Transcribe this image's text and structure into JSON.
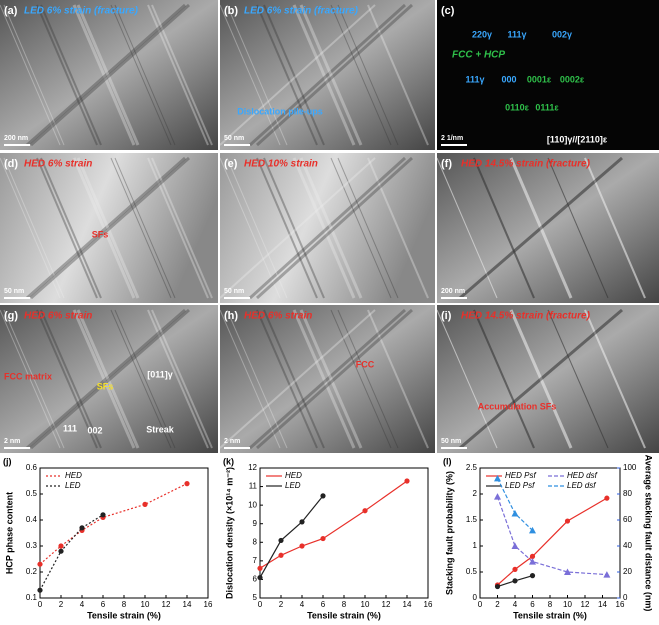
{
  "panels": [
    {
      "label": "(a)",
      "title": "LED 6% strain (fracture)",
      "notes": [],
      "scale": "200 nm"
    },
    {
      "label": "(b)",
      "title": "LED 6% strain (fracture)",
      "notes": [
        "Dislocation pile-ups"
      ],
      "scale": "50 nm"
    },
    {
      "label": "(c)",
      "title": "FCC + HCP",
      "notes": [
        "220γ",
        "111γ",
        "002γ",
        "111γ",
        "000",
        "0001ε",
        "0002ε",
        "0110ε",
        "0111ε",
        "[110]γ//[2110]ε"
      ],
      "scale": "2 1/nm"
    },
    {
      "label": "(d)",
      "title": "HED 6% strain",
      "notes": [
        "SFs"
      ],
      "scale": "50 nm"
    },
    {
      "label": "(e)",
      "title": "HED 10% strain",
      "notes": [],
      "scale": "50 nm"
    },
    {
      "label": "(f)",
      "title": "HED 14.5% strain (fracture)",
      "notes": [],
      "scale": "200 nm"
    },
    {
      "label": "(g)",
      "title": "HED 6% strain",
      "notes": [
        "FCC matrix",
        "SFs",
        "[011]γ",
        "Streak",
        "111",
        "002"
      ],
      "scale": "2 nm"
    },
    {
      "label": "(h)",
      "title": "HED 6% strain",
      "notes": [
        "FCC"
      ],
      "scale": "2 nm"
    },
    {
      "label": "(i)",
      "title": "HED 14.5% strain (fracture)",
      "notes": [
        "Accumulation SFs"
      ],
      "scale": "50 nm"
    }
  ],
  "chart_data": [
    {
      "type": "line",
      "label": "(j)",
      "xlabel": "Tensile strain (%)",
      "ylabel": "HCP phase content",
      "xlim": [
        0,
        16
      ],
      "xticks": [
        0,
        2,
        4,
        6,
        8,
        10,
        12,
        14,
        16
      ],
      "ylim": [
        0.1,
        0.6
      ],
      "yticks": [
        0.1,
        0.2,
        0.3,
        0.4,
        0.5,
        0.6
      ],
      "legend": "top-left",
      "series": [
        {
          "name": "HED",
          "color": "#e8302a",
          "style": "dotted",
          "x": [
            0,
            2,
            4,
            6,
            10,
            14
          ],
          "values": [
            0.23,
            0.3,
            0.36,
            0.41,
            0.46,
            0.54
          ]
        },
        {
          "name": "LED",
          "color": "#222222",
          "style": "dotted",
          "x": [
            0,
            2,
            4,
            6
          ],
          "values": [
            0.13,
            0.28,
            0.37,
            0.42
          ]
        }
      ]
    },
    {
      "type": "line",
      "label": "(k)",
      "xlabel": "Tensile strain (%)",
      "ylabel": "Dislocation density (×10¹⁴ m⁻²)",
      "xlim": [
        0,
        16
      ],
      "xticks": [
        0,
        2,
        4,
        6,
        8,
        10,
        12,
        14,
        16
      ],
      "ylim": [
        5,
        12
      ],
      "yticks": [
        5,
        6,
        7,
        8,
        9,
        10,
        11,
        12
      ],
      "legend": "top-left",
      "series": [
        {
          "name": "HED",
          "color": "#e8302a",
          "style": "solid",
          "x": [
            0,
            2,
            4,
            6,
            10,
            14
          ],
          "values": [
            6.6,
            7.3,
            7.8,
            8.2,
            9.7,
            11.3
          ]
        },
        {
          "name": "LED",
          "color": "#222222",
          "style": "solid",
          "x": [
            0,
            2,
            4,
            6
          ],
          "values": [
            6.1,
            8.1,
            9.1,
            10.5
          ]
        }
      ]
    },
    {
      "type": "line",
      "label": "(l)",
      "xlabel": "Tensile strain (%)",
      "ylabel": "Stacking fault probability (%)",
      "y2label": "Average stacking fault distance (nm)",
      "xlim": [
        0,
        16
      ],
      "xticks": [
        0,
        2,
        4,
        6,
        8,
        10,
        12,
        14,
        16
      ],
      "ylim": [
        0,
        2.5
      ],
      "yticks": [
        0,
        0.5,
        1,
        1.5,
        2,
        2.5
      ],
      "y2lim": [
        0,
        100
      ],
      "y2ticks": [
        0,
        20,
        40,
        60,
        80,
        100
      ],
      "legend": "top-left",
      "series": [
        {
          "name": "HED Psf",
          "color": "#e8302a",
          "style": "solid",
          "x": [
            2,
            4,
            6,
            10,
            14.5
          ],
          "values": [
            0.25,
            0.55,
            0.8,
            1.48,
            1.92
          ]
        },
        {
          "name": "LED Psf",
          "color": "#222222",
          "style": "solid",
          "x": [
            2,
            4,
            6
          ],
          "values": [
            0.22,
            0.33,
            0.43
          ]
        },
        {
          "name": "HED dsf",
          "color": "#7a6fd8",
          "style": "dashed",
          "axis": "y2",
          "x": [
            2,
            4,
            6,
            10,
            14.5
          ],
          "values": [
            78,
            40,
            28,
            20,
            18
          ]
        },
        {
          "name": "LED dsf",
          "color": "#2f8fe0",
          "style": "dashed",
          "axis": "y2",
          "x": [
            2,
            4,
            6
          ],
          "values": [
            92,
            65,
            52
          ]
        }
      ]
    }
  ]
}
